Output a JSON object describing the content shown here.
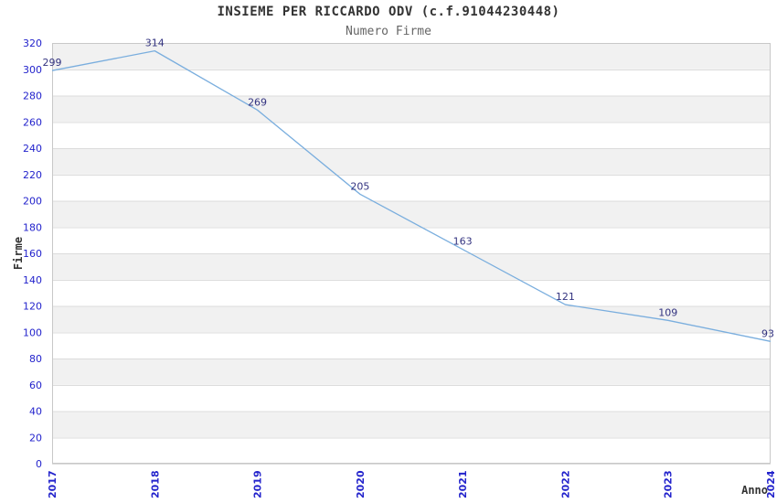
{
  "chart_data": {
    "type": "line",
    "title": "INSIEME PER RICCARDO ODV (c.f.91044230448)",
    "subtitle": "Numero Firme",
    "xlabel": "Anno",
    "ylabel": "Firme",
    "categories": [
      "2017",
      "2018",
      "2019",
      "2020",
      "2021",
      "2022",
      "2023",
      "2024"
    ],
    "series": [
      {
        "name": "Numero Firme",
        "values": [
          299,
          314,
          269,
          205,
          163,
          121,
          109,
          93
        ]
      }
    ],
    "ylim": [
      0,
      320
    ],
    "ytick_step": 20,
    "legend": "none",
    "grid": "horizontal-bands-alternating",
    "colors": {
      "line": "#7aaede",
      "tick_label": "#2323cc",
      "data_label": "#333380",
      "band_light": "#ffffff",
      "band_dark": "#f1f1f1",
      "grid_line": "#dcdcdc",
      "border": "#c8c8c8",
      "title": "#333333",
      "subtitle": "#666666",
      "axis_title": "#333333"
    }
  }
}
